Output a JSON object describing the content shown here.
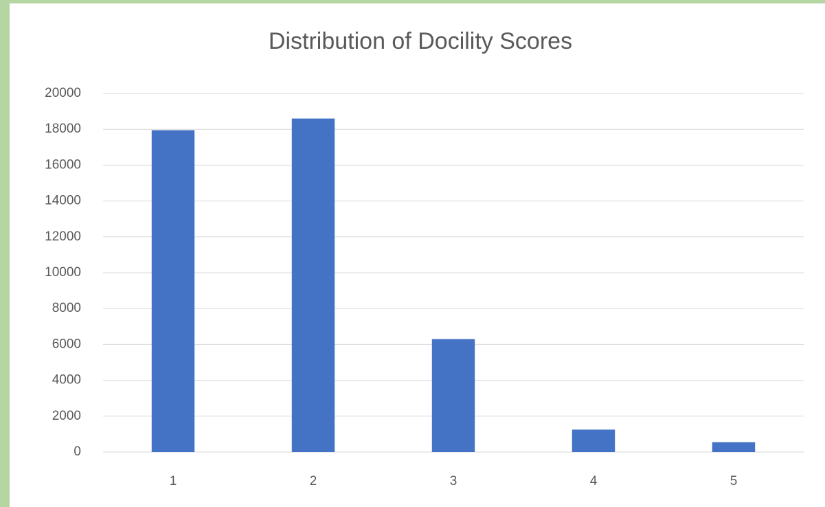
{
  "chart_data": {
    "type": "bar",
    "title": "Distribution of Docility Scores",
    "categories": [
      "1",
      "2",
      "3",
      "4",
      "5"
    ],
    "values": [
      17950,
      18600,
      6300,
      1250,
      550
    ],
    "color": "#4472c4",
    "ylim": [
      0,
      20000
    ],
    "yticks": [
      0,
      2000,
      4000,
      6000,
      8000,
      10000,
      12000,
      14000,
      16000,
      18000,
      20000
    ],
    "grid": true
  }
}
